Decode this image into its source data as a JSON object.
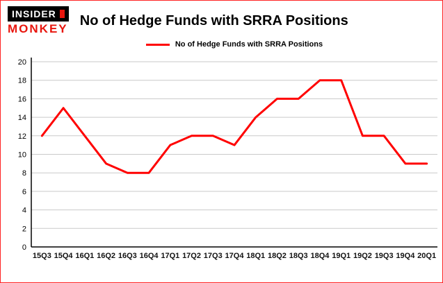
{
  "logo": {
    "line1": "INSIDER",
    "line2": "MONKEY"
  },
  "header": {
    "title": "No of Hedge Funds with SRRA Positions"
  },
  "legend": {
    "label": "No of Hedge Funds with SRRA Positions"
  },
  "colors": {
    "line": "#ff0000",
    "grid": "#c9c9c9",
    "axis": "#000000",
    "border": "#ff2222",
    "logo_red": "#e8150d",
    "text": "#000000"
  },
  "chart_data": {
    "type": "line",
    "title": "No of Hedge Funds with SRRA Positions",
    "legend": "No of Hedge Funds with SRRA Positions",
    "categories": [
      "15Q3",
      "15Q4",
      "16Q1",
      "16Q2",
      "16Q3",
      "16Q4",
      "17Q1",
      "17Q2",
      "17Q3",
      "17Q4",
      "18Q1",
      "18Q2",
      "18Q3",
      "18Q4",
      "19Q1",
      "19Q2",
      "19Q3",
      "19Q4",
      "20Q1"
    ],
    "values": [
      12,
      15,
      12,
      9,
      8,
      8,
      11,
      12,
      12,
      11,
      14,
      16,
      16,
      18,
      18,
      12,
      12,
      9,
      9
    ],
    "xlabel": "",
    "ylabel": "",
    "ylim": [
      0,
      20
    ],
    "ytick_step": 2,
    "grid": "horizontal",
    "legend_position": "top"
  }
}
